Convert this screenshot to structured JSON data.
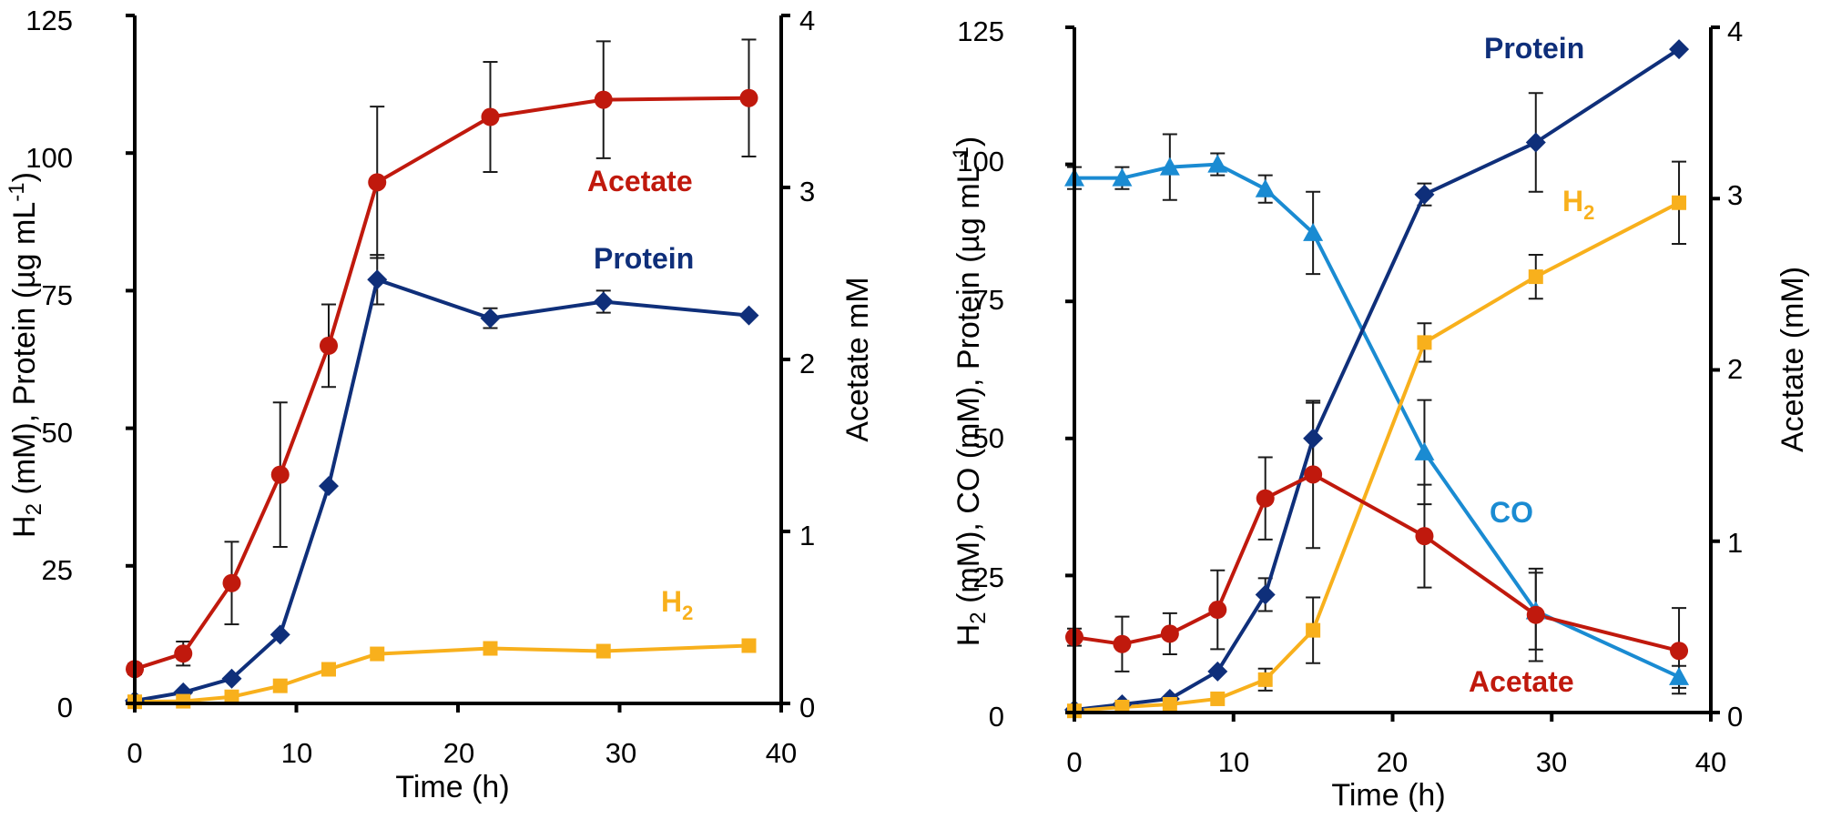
{
  "colors": {
    "acetate": "#c0190d",
    "protein": "#0f2f7a",
    "h2": "#f8b01c",
    "co": "#1a8bd2",
    "error": "#1a1a1a"
  },
  "chart_data": [
    {
      "type": "line",
      "xlabel": "Time (h)",
      "ylabel": {
        "main": "H",
        "sub": "2",
        "rest": " (mM), Protein (µg mL",
        "sup": "-1",
        "close": ")"
      },
      "y2label": "Acetate mM",
      "xlim": [
        0,
        40
      ],
      "ylim": [
        0,
        125
      ],
      "y2lim": [
        0,
        4
      ],
      "xticks": [
        "0",
        "10",
        "20",
        "30",
        "40"
      ],
      "yticks": [
        "0",
        "25",
        "50",
        "75",
        "100",
        "125"
      ],
      "y2ticks": [
        "0",
        "1",
        "2",
        "3",
        "4"
      ],
      "series": [
        {
          "name": "Acetate",
          "label": "Acetate",
          "axis": "right",
          "marker": "circle",
          "color_key": "acetate",
          "x": [
            0,
            3,
            6,
            9,
            12,
            15,
            22,
            29,
            38
          ],
          "y": [
            0.2,
            0.29,
            0.7,
            1.33,
            2.08,
            3.03,
            3.41,
            3.51,
            3.52
          ],
          "err": [
            0.03,
            0.07,
            0.24,
            0.42,
            0.24,
            0.44,
            0.32,
            0.34,
            0.34
          ]
        },
        {
          "name": "Protein",
          "label": "Protein",
          "axis": "left",
          "marker": "diamond",
          "color_key": "protein",
          "x": [
            0,
            3,
            6,
            9,
            12,
            15,
            22,
            29,
            38
          ],
          "y": [
            0.5,
            2,
            4.5,
            12.5,
            39.5,
            77,
            70,
            73,
            70.5
          ],
          "err": [
            0,
            0,
            0,
            0,
            0,
            4.5,
            1.8,
            2,
            0
          ]
        },
        {
          "name": "H2",
          "label_main": "H",
          "label_sub": "2",
          "axis": "left",
          "marker": "square",
          "color_key": "h2",
          "x": [
            0,
            3,
            6,
            9,
            12,
            15,
            22,
            29,
            38
          ],
          "y": [
            0.3,
            0.4,
            1.2,
            3.2,
            6.2,
            9,
            10,
            9.5,
            10.5
          ],
          "err": [
            0,
            0,
            0,
            0,
            0,
            0,
            0,
            0,
            0
          ]
        }
      ]
    },
    {
      "type": "line",
      "xlabel": "Time (h)",
      "ylabel": {
        "main": "H",
        "sub": "2",
        "rest": " (mM), CO (mM), Protein (µg mL",
        "sup": "-1",
        "close": ")"
      },
      "y2label": "Acetate (mM)",
      "xlim": [
        0,
        40
      ],
      "ylim": [
        0,
        125
      ],
      "y2lim": [
        0,
        4
      ],
      "xticks": [
        "0",
        "10",
        "20",
        "30",
        "40"
      ],
      "yticks": [
        "0",
        "25",
        "50",
        "75",
        "100",
        "125"
      ],
      "y2ticks": [
        "0",
        "1",
        "2",
        "3",
        "4"
      ],
      "series": [
        {
          "name": "CO",
          "label": "CO",
          "axis": "left",
          "marker": "triangle",
          "color_key": "co",
          "x": [
            0,
            3,
            6,
            9,
            12,
            15,
            22,
            29,
            38
          ],
          "y": [
            97.5,
            97.5,
            99.5,
            100,
            95.5,
            87.5,
            47.5,
            18.5,
            6.5
          ],
          "err": [
            2,
            2,
            6,
            2,
            2.5,
            7.5,
            9.5,
            7,
            2
          ]
        },
        {
          "name": "Protein",
          "label": "Protein",
          "axis": "left",
          "marker": "diamond",
          "color_key": "protein",
          "x": [
            0,
            3,
            6,
            9,
            12,
            15,
            22,
            29,
            38
          ],
          "y": [
            0.5,
            1.5,
            2.5,
            7.5,
            21.5,
            50,
            94.5,
            104,
            121
          ],
          "err": [
            0,
            0,
            0,
            0,
            3,
            6.5,
            2,
            9,
            0
          ]
        },
        {
          "name": "H2",
          "label_main": "H",
          "label_sub": "2",
          "axis": "left",
          "marker": "square",
          "color_key": "h2",
          "x": [
            0,
            3,
            6,
            9,
            12,
            15,
            22,
            29,
            38
          ],
          "y": [
            0.3,
            1,
            1.5,
            2.5,
            6,
            15,
            67.5,
            79.5,
            93
          ],
          "err": [
            0,
            0,
            0,
            0,
            2,
            6,
            3.5,
            4,
            7.5
          ]
        },
        {
          "name": "Acetate",
          "label": "Acetate",
          "axis": "right",
          "marker": "circle",
          "color_key": "acetate",
          "x": [
            0,
            3,
            6,
            9,
            12,
            15,
            22,
            29,
            38
          ],
          "y": [
            0.44,
            0.4,
            0.46,
            0.6,
            1.25,
            1.39,
            1.03,
            0.57,
            0.36
          ],
          "err": [
            0.05,
            0.16,
            0.12,
            0.23,
            0.24,
            0.43,
            0.3,
            0.27,
            0.25
          ]
        }
      ]
    }
  ]
}
